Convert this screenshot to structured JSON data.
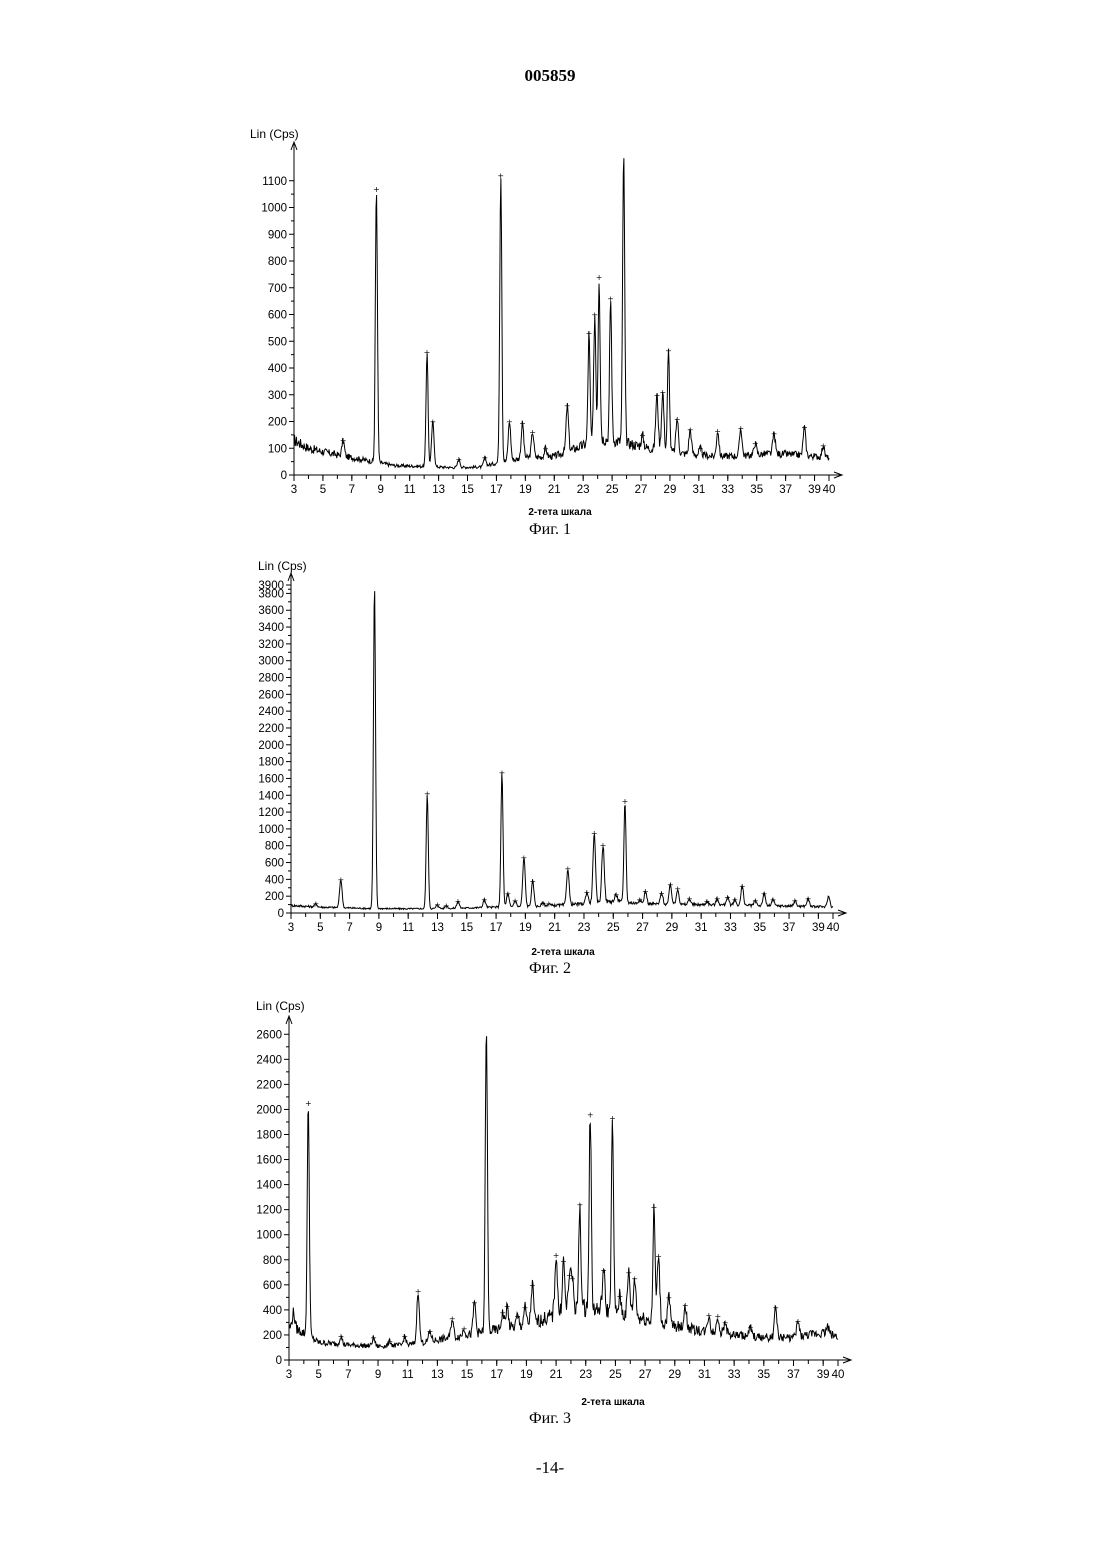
{
  "header": {
    "doc_number": "005859"
  },
  "footer": {
    "page_number": "-14-"
  },
  "chart_data": [
    {
      "type": "line",
      "caption": "Фиг. 1",
      "ylabel": "Lin (Cps)",
      "xlabel": "2-тета шкала",
      "xlim": [
        3,
        40
      ],
      "ylim": [
        0,
        1200
      ],
      "x_ticks": [
        3,
        5,
        7,
        9,
        11,
        13,
        15,
        17,
        19,
        21,
        23,
        25,
        27,
        29,
        31,
        33,
        35,
        37,
        39,
        40
      ],
      "y_ticks": [
        0,
        100,
        200,
        300,
        400,
        500,
        600,
        700,
        800,
        900,
        1000,
        1100
      ],
      "baseline": [
        [
          3,
          130
        ],
        [
          4,
          100
        ],
        [
          6,
          75
        ],
        [
          8,
          55
        ],
        [
          10,
          35
        ],
        [
          12,
          32
        ],
        [
          14,
          28
        ],
        [
          16,
          30
        ],
        [
          17,
          45
        ],
        [
          19,
          65
        ],
        [
          21,
          70
        ],
        [
          23,
          110
        ],
        [
          24,
          140
        ],
        [
          26,
          120
        ],
        [
          28,
          95
        ],
        [
          30,
          80
        ],
        [
          32,
          70
        ],
        [
          34,
          72
        ],
        [
          36,
          80
        ],
        [
          38,
          75
        ],
        [
          40,
          65
        ]
      ],
      "peaks": [
        {
          "x": 6.4,
          "y": 130,
          "marked": true
        },
        {
          "x": 8.7,
          "y": 1070,
          "marked": true
        },
        {
          "x": 12.2,
          "y": 460,
          "marked": true
        },
        {
          "x": 12.6,
          "y": 200,
          "marked": true
        },
        {
          "x": 14.4,
          "y": 60,
          "marked": true
        },
        {
          "x": 16.2,
          "y": 65,
          "marked": true
        },
        {
          "x": 17.3,
          "y": 1120,
          "marked": true
        },
        {
          "x": 17.9,
          "y": 200,
          "marked": true
        },
        {
          "x": 18.8,
          "y": 195,
          "marked": true
        },
        {
          "x": 19.5,
          "y": 160,
          "marked": true
        },
        {
          "x": 20.4,
          "y": 100,
          "marked": true
        },
        {
          "x": 21.9,
          "y": 260,
          "marked": true
        },
        {
          "x": 23.4,
          "y": 530,
          "marked": true
        },
        {
          "x": 23.8,
          "y": 600,
          "marked": true
        },
        {
          "x": 24.1,
          "y": 740,
          "marked": true
        },
        {
          "x": 24.9,
          "y": 660,
          "marked": true
        },
        {
          "x": 25.8,
          "y": 1200,
          "marked": false
        },
        {
          "x": 27.1,
          "y": 150,
          "marked": true
        },
        {
          "x": 28.1,
          "y": 300,
          "marked": true
        },
        {
          "x": 28.5,
          "y": 310,
          "marked": true
        },
        {
          "x": 28.9,
          "y": 465,
          "marked": true
        },
        {
          "x": 29.5,
          "y": 210,
          "marked": true
        },
        {
          "x": 30.4,
          "y": 170,
          "marked": true
        },
        {
          "x": 31.1,
          "y": 100,
          "marked": true
        },
        {
          "x": 32.3,
          "y": 165,
          "marked": true
        },
        {
          "x": 33.9,
          "y": 175,
          "marked": true
        },
        {
          "x": 34.9,
          "y": 120,
          "marked": true
        },
        {
          "x": 36.2,
          "y": 155,
          "marked": true
        },
        {
          "x": 38.3,
          "y": 180,
          "marked": true
        },
        {
          "x": 39.6,
          "y": 110,
          "marked": true
        }
      ]
    },
    {
      "type": "line",
      "caption": "Фиг. 2",
      "ylabel": "Lin (Cps)",
      "xlabel": "2-тета шкала",
      "xlim": [
        3,
        40
      ],
      "ylim": [
        0,
        3900
      ],
      "x_ticks": [
        3,
        5,
        7,
        9,
        11,
        13,
        15,
        17,
        19,
        21,
        23,
        25,
        27,
        29,
        31,
        33,
        35,
        37,
        39,
        40
      ],
      "y_ticks": [
        0,
        200,
        400,
        600,
        800,
        1000,
        1200,
        1400,
        1600,
        1800,
        2000,
        2200,
        2400,
        2600,
        2800,
        3000,
        3200,
        3400,
        3600,
        3800,
        3900
      ],
      "baseline": [
        [
          3,
          90
        ],
        [
          5,
          70
        ],
        [
          8,
          55
        ],
        [
          11,
          50
        ],
        [
          14,
          55
        ],
        [
          17,
          70
        ],
        [
          20,
          80
        ],
        [
          23,
          110
        ],
        [
          25,
          140
        ],
        [
          27,
          110
        ],
        [
          30,
          100
        ],
        [
          33,
          95
        ],
        [
          36,
          85
        ],
        [
          38,
          80
        ],
        [
          40,
          70
        ]
      ],
      "peaks": [
        {
          "x": 4.7,
          "y": 110,
          "marked": true
        },
        {
          "x": 6.4,
          "y": 400,
          "marked": true
        },
        {
          "x": 8.7,
          "y": 3900,
          "marked": false
        },
        {
          "x": 12.3,
          "y": 1420,
          "marked": true
        },
        {
          "x": 13.0,
          "y": 100,
          "marked": true
        },
        {
          "x": 13.6,
          "y": 90,
          "marked": true
        },
        {
          "x": 14.4,
          "y": 140,
          "marked": true
        },
        {
          "x": 16.2,
          "y": 160,
          "marked": true
        },
        {
          "x": 17.4,
          "y": 1670,
          "marked": true
        },
        {
          "x": 17.8,
          "y": 230,
          "marked": true
        },
        {
          "x": 18.3,
          "y": 150,
          "marked": true
        },
        {
          "x": 18.9,
          "y": 660,
          "marked": true
        },
        {
          "x": 19.5,
          "y": 380,
          "marked": true
        },
        {
          "x": 20.2,
          "y": 120,
          "marked": true
        },
        {
          "x": 20.6,
          "y": 110,
          "marked": true
        },
        {
          "x": 21.9,
          "y": 530,
          "marked": true
        },
        {
          "x": 23.2,
          "y": 250,
          "marked": true
        },
        {
          "x": 23.7,
          "y": 950,
          "marked": true
        },
        {
          "x": 24.3,
          "y": 810,
          "marked": true
        },
        {
          "x": 25.2,
          "y": 220,
          "marked": true
        },
        {
          "x": 25.8,
          "y": 1330,
          "marked": true
        },
        {
          "x": 26.8,
          "y": 160,
          "marked": true
        },
        {
          "x": 27.2,
          "y": 260,
          "marked": true
        },
        {
          "x": 28.3,
          "y": 240,
          "marked": true
        },
        {
          "x": 28.9,
          "y": 340,
          "marked": true
        },
        {
          "x": 29.4,
          "y": 290,
          "marked": true
        },
        {
          "x": 30.2,
          "y": 170,
          "marked": true
        },
        {
          "x": 31.4,
          "y": 140,
          "marked": true
        },
        {
          "x": 32.1,
          "y": 170,
          "marked": true
        },
        {
          "x": 32.8,
          "y": 190,
          "marked": true
        },
        {
          "x": 33.3,
          "y": 160,
          "marked": true
        },
        {
          "x": 33.8,
          "y": 320,
          "marked": true
        },
        {
          "x": 34.7,
          "y": 150,
          "marked": true
        },
        {
          "x": 35.3,
          "y": 230,
          "marked": true
        },
        {
          "x": 35.9,
          "y": 160,
          "marked": true
        },
        {
          "x": 37.4,
          "y": 150,
          "marked": true
        },
        {
          "x": 38.3,
          "y": 170,
          "marked": true
        },
        {
          "x": 39.7,
          "y": 200,
          "marked": false
        }
      ]
    },
    {
      "type": "line",
      "caption": "Фиг. 3",
      "ylabel": "Lin (Cps)",
      "xlabel": "2-тета шкала",
      "xlim": [
        3,
        40
      ],
      "ylim": [
        0,
        2650
      ],
      "x_ticks": [
        3,
        5,
        7,
        9,
        11,
        13,
        15,
        17,
        19,
        21,
        23,
        25,
        27,
        29,
        31,
        33,
        35,
        37,
        39,
        40
      ],
      "y_ticks": [
        0,
        200,
        400,
        600,
        800,
        1000,
        1200,
        1400,
        1600,
        1800,
        2000,
        2200,
        2400,
        2600
      ],
      "baseline": [
        [
          3,
          260
        ],
        [
          3.5,
          250
        ],
        [
          5,
          140
        ],
        [
          7,
          120
        ],
        [
          9,
          110
        ],
        [
          11,
          120
        ],
        [
          13,
          160
        ],
        [
          15,
          200
        ],
        [
          17,
          240
        ],
        [
          19,
          280
        ],
        [
          21,
          360
        ],
        [
          23,
          420
        ],
        [
          25,
          380
        ],
        [
          27,
          330
        ],
        [
          29,
          270
        ],
        [
          31,
          230
        ],
        [
          33,
          200
        ],
        [
          35,
          180
        ],
        [
          37,
          180
        ],
        [
          39,
          220
        ],
        [
          40,
          190
        ]
      ],
      "peaks": [
        {
          "x": 3.3,
          "y": 380,
          "marked": false
        },
        {
          "x": 4.3,
          "y": 2050,
          "marked": true
        },
        {
          "x": 6.5,
          "y": 190,
          "marked": true
        },
        {
          "x": 8.7,
          "y": 180,
          "marked": true
        },
        {
          "x": 9.8,
          "y": 150,
          "marked": true
        },
        {
          "x": 10.8,
          "y": 190,
          "marked": true
        },
        {
          "x": 11.7,
          "y": 550,
          "marked": true
        },
        {
          "x": 12.5,
          "y": 230,
          "marked": true
        },
        {
          "x": 14.0,
          "y": 330,
          "marked": true
        },
        {
          "x": 14.8,
          "y": 250,
          "marked": true
        },
        {
          "x": 15.5,
          "y": 460,
          "marked": true
        },
        {
          "x": 16.3,
          "y": 2650,
          "marked": false
        },
        {
          "x": 17.4,
          "y": 380,
          "marked": true
        },
        {
          "x": 17.7,
          "y": 430,
          "marked": true
        },
        {
          "x": 18.4,
          "y": 350,
          "marked": true
        },
        {
          "x": 18.9,
          "y": 420,
          "marked": true
        },
        {
          "x": 19.4,
          "y": 600,
          "marked": true
        },
        {
          "x": 21.0,
          "y": 840,
          "marked": true
        },
        {
          "x": 21.5,
          "y": 790,
          "marked": true
        },
        {
          "x": 21.9,
          "y": 680,
          "marked": true
        },
        {
          "x": 22.1,
          "y": 650,
          "marked": true
        },
        {
          "x": 22.6,
          "y": 1240,
          "marked": true
        },
        {
          "x": 23.3,
          "y": 1960,
          "marked": true
        },
        {
          "x": 24.2,
          "y": 720,
          "marked": true
        },
        {
          "x": 24.8,
          "y": 1930,
          "marked": true
        },
        {
          "x": 25.3,
          "y": 510,
          "marked": true
        },
        {
          "x": 25.9,
          "y": 700,
          "marked": true
        },
        {
          "x": 26.3,
          "y": 650,
          "marked": true
        },
        {
          "x": 27.6,
          "y": 1220,
          "marked": true
        },
        {
          "x": 27.9,
          "y": 830,
          "marked": true
        },
        {
          "x": 28.6,
          "y": 500,
          "marked": true
        },
        {
          "x": 29.7,
          "y": 440,
          "marked": true
        },
        {
          "x": 31.3,
          "y": 360,
          "marked": true
        },
        {
          "x": 31.9,
          "y": 350,
          "marked": true
        },
        {
          "x": 32.4,
          "y": 300,
          "marked": true
        },
        {
          "x": 34.1,
          "y": 260,
          "marked": true
        },
        {
          "x": 35.8,
          "y": 420,
          "marked": true
        },
        {
          "x": 37.3,
          "y": 310,
          "marked": true
        },
        {
          "x": 39.3,
          "y": 270,
          "marked": false
        }
      ]
    }
  ]
}
